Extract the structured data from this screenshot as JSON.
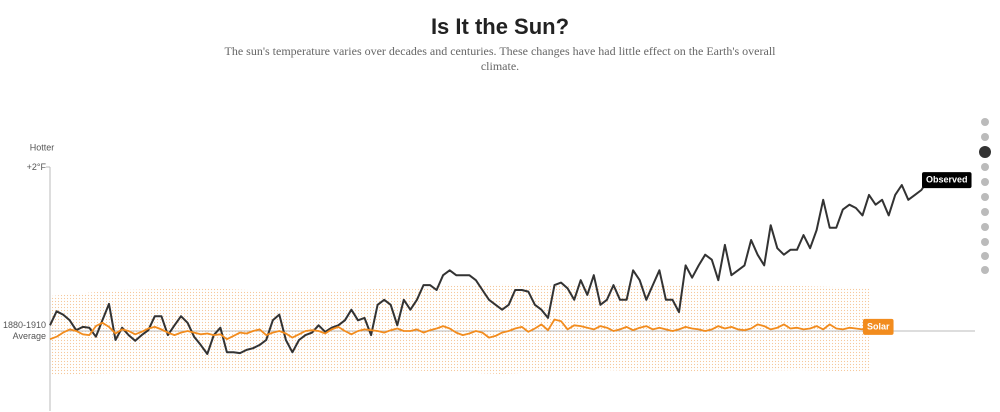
{
  "chart_data": {
    "type": "line",
    "title": "Is It the Sun?",
    "subtitle": "The sun's temperature varies over decades and centuries. These changes have had little effect on the Earth's overall climate.",
    "y_label": "Hotter",
    "ylim": [
      -1,
      2
    ],
    "yticks": [
      {
        "value": 0,
        "label": "1880-1910 Average"
      },
      {
        "value": 2,
        "label": "+2°F"
      }
    ],
    "series": [
      {
        "name": "Observed",
        "color": "#333333",
        "values": [
          0.07,
          0.24,
          0.2,
          0.13,
          0.01,
          0.05,
          0.04,
          -0.07,
          0.13,
          0.33,
          -0.11,
          0.04,
          -0.05,
          -0.12,
          -0.05,
          0.01,
          0.18,
          0.18,
          -0.05,
          0.07,
          0.18,
          0.1,
          -0.07,
          -0.17,
          -0.28,
          -0.05,
          0.04,
          -0.26,
          -0.26,
          -0.27,
          -0.23,
          -0.21,
          -0.17,
          -0.11,
          0.13,
          0.2,
          -0.11,
          -0.26,
          -0.11,
          -0.05,
          -0.02,
          0.07,
          -0.01,
          0.04,
          0.07,
          0.13,
          0.26,
          0.13,
          0.16,
          -0.05,
          0.32,
          0.38,
          0.32,
          0.07,
          0.38,
          0.26,
          0.38,
          0.56,
          0.56,
          0.5,
          0.68,
          0.74,
          0.68,
          0.68,
          0.68,
          0.62,
          0.5,
          0.38,
          0.32,
          0.26,
          0.32,
          0.5,
          0.5,
          0.48,
          0.32,
          0.26,
          0.16,
          0.56,
          0.59,
          0.52,
          0.38,
          0.62,
          0.44,
          0.68,
          0.32,
          0.38,
          0.56,
          0.38,
          0.38,
          0.74,
          0.62,
          0.38,
          0.56,
          0.74,
          0.38,
          0.38,
          0.23,
          0.8,
          0.65,
          0.8,
          0.93,
          0.87,
          0.62,
          1.05,
          0.68,
          0.74,
          0.8,
          1.11,
          0.93,
          0.8,
          1.29,
          1.01,
          0.93,
          0.99,
          0.99,
          1.17,
          1.01,
          1.23,
          1.6,
          1.26,
          1.26,
          1.48,
          1.54,
          1.5,
          1.41,
          1.66,
          1.54,
          1.6,
          1.41,
          1.66,
          1.78,
          1.6,
          1.66,
          1.72,
          1.84
        ]
      },
      {
        "name": "Solar",
        "color": "#f28c1e",
        "values": [
          -0.1,
          -0.07,
          -0.02,
          0.02,
          0.0,
          -0.04,
          -0.05,
          0.06,
          0.1,
          0.05,
          -0.03,
          0.02,
          0.0,
          -0.04,
          -0.01,
          0.03,
          0.05,
          0.02,
          -0.02,
          -0.05,
          -0.02,
          0.0,
          -0.02,
          -0.04,
          -0.03,
          -0.05,
          -0.04,
          -0.1,
          -0.06,
          -0.02,
          -0.03,
          0.0,
          0.02,
          -0.05,
          -0.02,
          0.0,
          -0.03,
          -0.08,
          -0.04,
          0.0,
          0.01,
          0.0,
          -0.03,
          0.02,
          0.05,
          0.0,
          -0.04,
          0.0,
          0.02,
          0.01,
          0.0,
          -0.02,
          0.01,
          0.03,
          0.0,
          0.0,
          0.02,
          -0.02,
          0.01,
          0.03,
          0.06,
          0.03,
          -0.02,
          -0.05,
          -0.03,
          0.0,
          -0.02,
          -0.08,
          -0.06,
          -0.02,
          0.0,
          0.03,
          0.05,
          -0.01,
          0.03,
          0.08,
          0.01,
          0.14,
          0.12,
          0.02,
          0.07,
          0.06,
          0.04,
          0.02,
          0.06,
          0.04,
          0.0,
          0.02,
          0.05,
          0.01,
          0.04,
          0.06,
          0.02,
          0.04,
          0.02,
          0.0,
          0.02,
          0.05,
          0.03,
          0.02,
          0.0,
          0.02,
          0.06,
          0.03,
          0.05,
          0.02,
          0.01,
          0.03,
          0.08,
          0.06,
          0.02,
          0.04,
          0.08,
          0.03,
          0.04,
          0.02,
          0.03,
          0.06,
          0.02,
          0.08,
          0.03,
          0.02,
          0.04,
          0.03,
          0.02,
          0.05
        ]
      }
    ]
  }
}
